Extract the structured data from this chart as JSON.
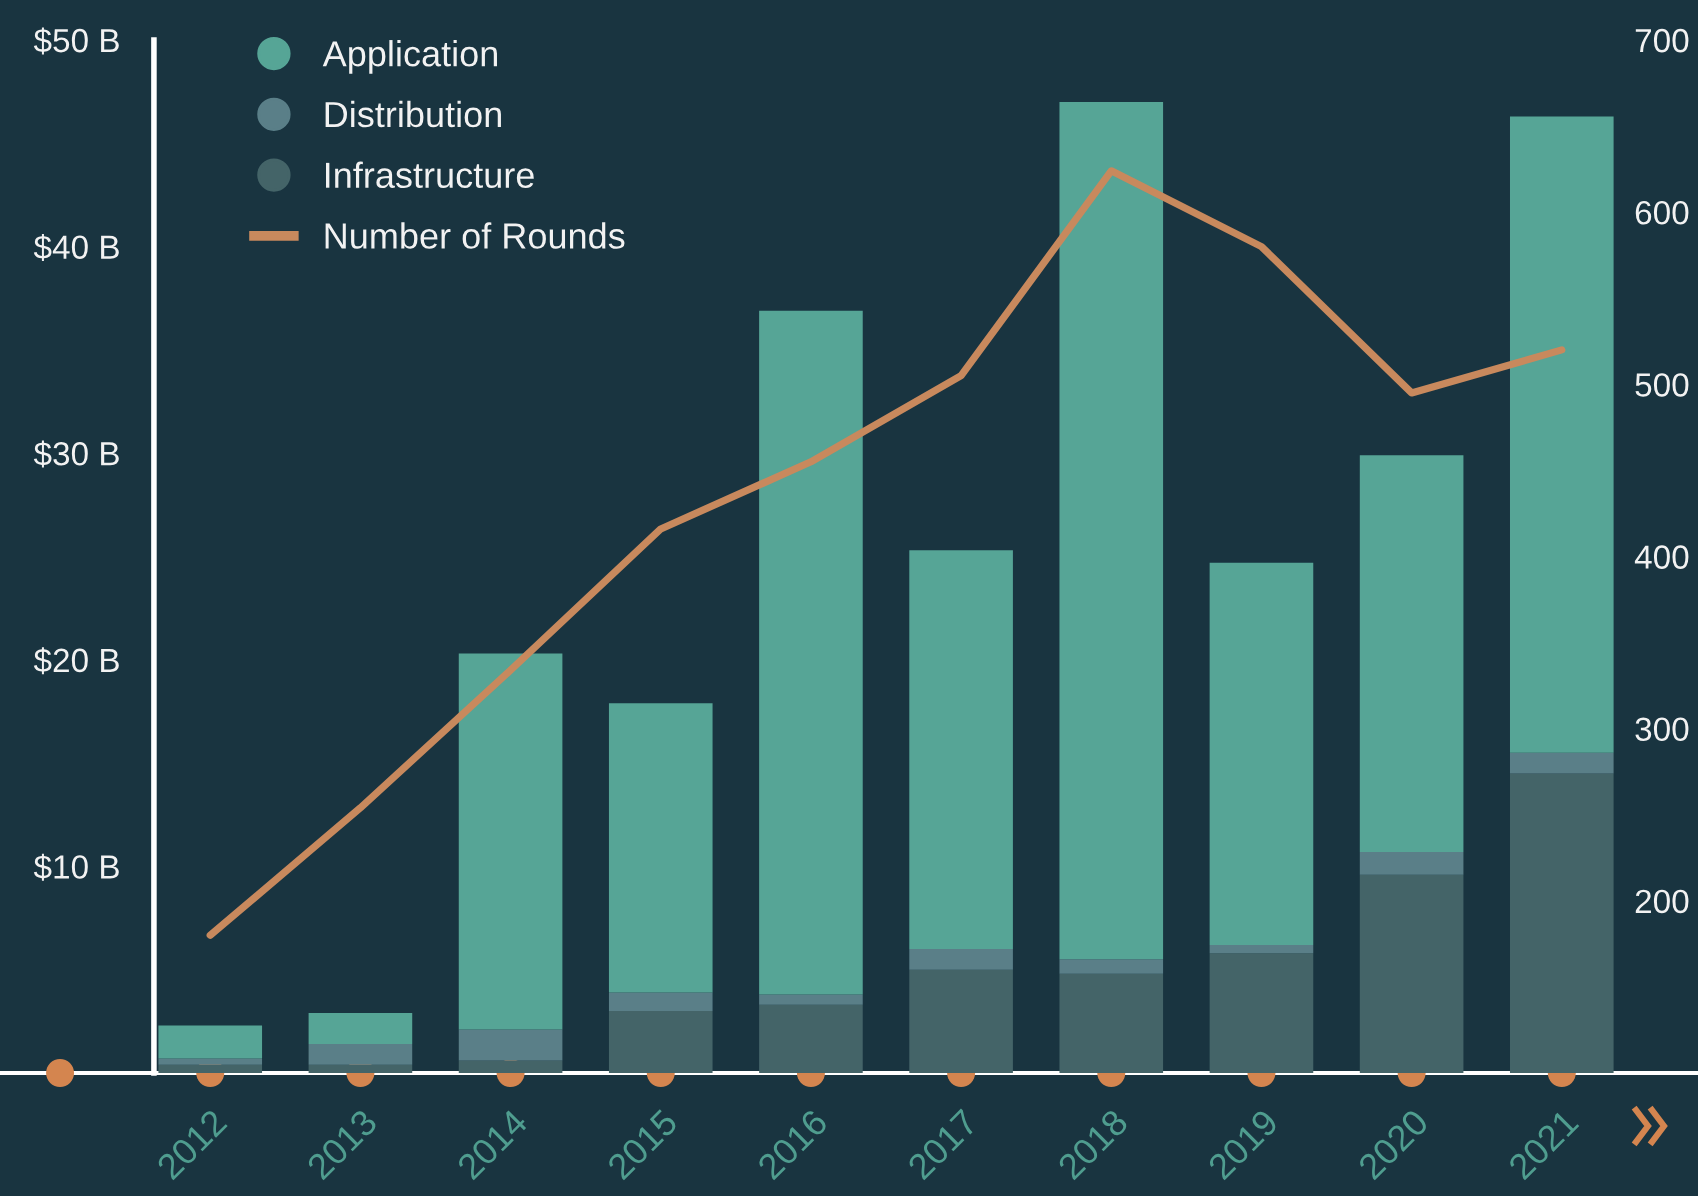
{
  "chart_data": {
    "type": "bar",
    "stacked": true,
    "categories": [
      "2012",
      "2013",
      "2014",
      "2015",
      "2016",
      "2017",
      "2018",
      "2019",
      "2020",
      "2021"
    ],
    "series": [
      {
        "name": "Infrastructure",
        "color": "#446468",
        "values": [
          0.4,
          0.4,
          0.6,
          3.0,
          3.3,
          5.0,
          4.8,
          5.8,
          9.6,
          14.5
        ]
      },
      {
        "name": "Distribution",
        "color": "#5a7f88",
        "values": [
          0.3,
          1.0,
          1.5,
          0.9,
          0.5,
          1.0,
          0.7,
          0.4,
          1.1,
          1.0
        ]
      },
      {
        "name": "Application",
        "color": "#56a596",
        "values": [
          1.6,
          1.5,
          18.2,
          14.0,
          33.1,
          19.3,
          41.5,
          18.5,
          19.2,
          30.8
        ]
      },
      {
        "name": "Number of Rounds",
        "type": "line",
        "axis": "y2",
        "color": "#c8895d",
        "line_style": "solid",
        "values": [
          180,
          254,
          334,
          416,
          455,
          505,
          624,
          580,
          495,
          520
        ]
      }
    ],
    "ylim": [
      0,
      50
    ],
    "yticks": [
      {
        "value": 10,
        "label": "$10 B"
      },
      {
        "value": 20,
        "label": "$20 B"
      },
      {
        "value": 30,
        "label": "$30 B"
      },
      {
        "value": 40,
        "label": "$40 B"
      },
      {
        "value": 50,
        "label": "$50 B"
      }
    ],
    "y2lim": [
      100,
      700
    ],
    "y2ticks": [
      200,
      300,
      400,
      500,
      600,
      700
    ],
    "legend": "top left",
    "grid": false
  }
}
